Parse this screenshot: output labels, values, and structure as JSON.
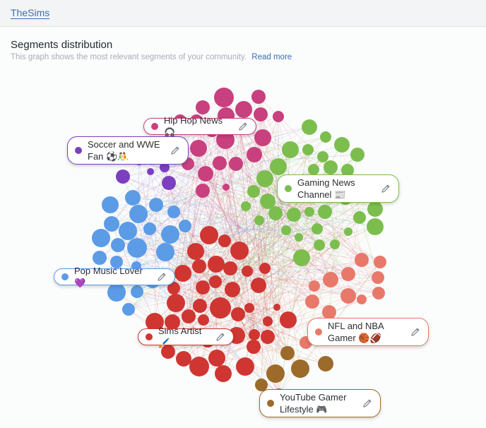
{
  "app": {
    "brand": "TheSims"
  },
  "header": {
    "title": "Segments distribution",
    "description": "This graph shows the most relevant segments of your community.",
    "read_more": "Read more"
  },
  "colors": {
    "purple": "#7b3fbf",
    "magenta": "#c8407e",
    "green": "#7cbe4e",
    "blue": "#5c9be6",
    "red": "#cf3632",
    "salmon": "#e8796a",
    "brown": "#9c6a2b"
  },
  "segments": [
    {
      "id": "hiphop",
      "name": "Hip Hop News 🎧",
      "color": "#c8407e",
      "edit_icon": "pencil-icon"
    },
    {
      "id": "soccer",
      "name": "Soccer and WWE\nFan ⚽🤼",
      "color": "#7b3fbf",
      "edit_icon": "pencil-icon"
    },
    {
      "id": "gaming",
      "name": "Gaming News\nChannel 📰",
      "color": "#7cbe4e",
      "edit_icon": "pencil-icon"
    },
    {
      "id": "pop",
      "name": "Pop Music Lover 💜",
      "color": "#5c9be6",
      "edit_icon": "pencil-icon"
    },
    {
      "id": "sims",
      "name": "Sims Artist 🖌️",
      "color": "#cf3632",
      "edit_icon": "pencil-icon"
    },
    {
      "id": "nfl",
      "name": "NFL and NBA\nGamer 🏀🏈",
      "color": "#e8796a",
      "edit_icon": "pencil-icon"
    },
    {
      "id": "youtube",
      "name": "YouTube Gamer\nLifestyle 🎮",
      "color": "#9c6a2b",
      "edit_icon": "pencil-icon"
    }
  ]
}
